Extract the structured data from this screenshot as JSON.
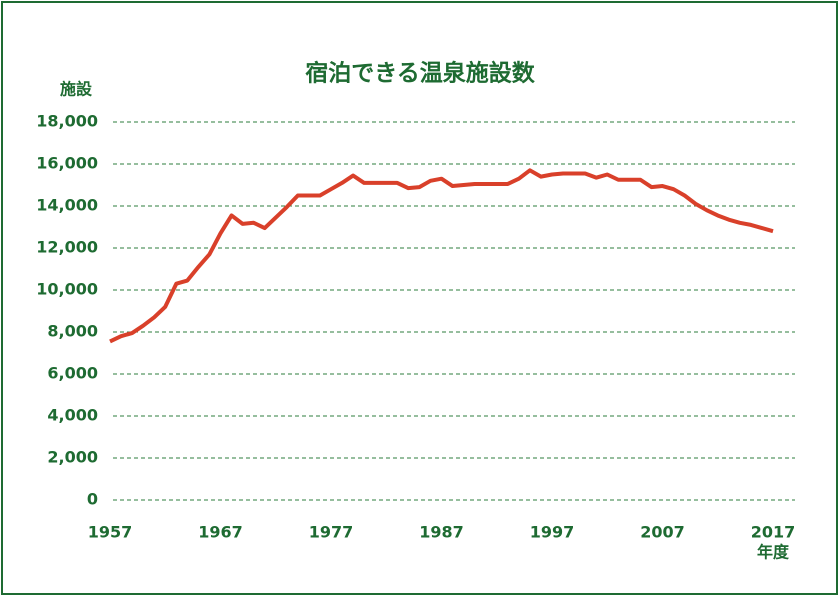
{
  "chart_data": {
    "type": "line",
    "title": "宿泊できる温泉施設数",
    "y_label": "施設",
    "x_label": "年度",
    "x": [
      1957,
      1958,
      1959,
      1960,
      1961,
      1962,
      1963,
      1964,
      1965,
      1966,
      1967,
      1968,
      1969,
      1970,
      1971,
      1972,
      1973,
      1974,
      1975,
      1976,
      1977,
      1978,
      1979,
      1980,
      1981,
      1982,
      1983,
      1984,
      1985,
      1986,
      1987,
      1988,
      1989,
      1990,
      1991,
      1992,
      1993,
      1994,
      1995,
      1996,
      1997,
      1998,
      1999,
      2000,
      2001,
      2002,
      2003,
      2004,
      2005,
      2006,
      2007,
      2008,
      2009,
      2010,
      2011,
      2012,
      2013,
      2014,
      2015,
      2016,
      2017
    ],
    "series": [
      {
        "color": "#d9402a",
        "values": [
          7550,
          7800,
          7950,
          8300,
          8700,
          9200,
          10300,
          10450,
          11100,
          11700,
          12700,
          13550,
          13150,
          13200,
          12950,
          13450,
          13950,
          14500,
          14500,
          14500,
          14800,
          15100,
          15450,
          15100,
          15100,
          15100,
          15100,
          14850,
          14900,
          15200,
          15300,
          14950,
          15000,
          15050,
          15050,
          15050,
          15050,
          15300,
          15700,
          15400,
          15500,
          15550,
          15550,
          15550,
          15350,
          15500,
          15250,
          15250,
          15250,
          14900,
          14950,
          14800,
          14500,
          14100,
          13800,
          13550,
          13350,
          13200,
          13100,
          12950,
          12800
        ]
      }
    ],
    "xlim": [
      1957,
      2017
    ],
    "xticks": [
      1957,
      1967,
      1977,
      1987,
      1997,
      2007,
      2017
    ],
    "ylim": [
      0,
      18000
    ],
    "yticks": [
      0,
      {
        "value": 2000,
        "label": "2,000"
      },
      {
        "value": 4000,
        "label": "4,000"
      },
      {
        "value": 6000,
        "label": "6,000"
      },
      {
        "value": 8000,
        "label": "8,000"
      },
      {
        "value": 10000,
        "label": "10,000"
      },
      {
        "value": 12000,
        "label": "12,000"
      },
      {
        "value": 14000,
        "label": "14,000"
      },
      {
        "value": 16000,
        "label": "16,000"
      },
      {
        "value": 18000,
        "label": "18,000"
      }
    ],
    "grid": true,
    "grid_color": "#2e7d3e"
  }
}
